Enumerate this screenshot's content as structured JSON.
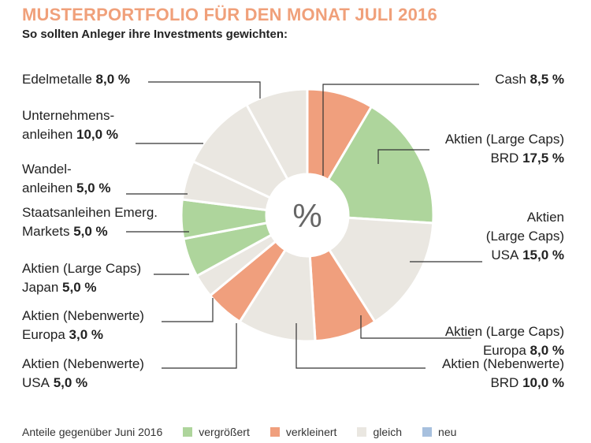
{
  "title": "MUSTERPORTFOLIO FÜR DEN MONAT JULI 2016",
  "subtitle": "So sollten Anleger ihre Investments gewichten:",
  "center_label": "%",
  "colors": {
    "vergroessert": "#AED59C",
    "verkleinert": "#F09F7D",
    "gleich": "#EAE7E1",
    "neu": "#A7C0DE"
  },
  "legend": {
    "intro": "Anteile gegenüber Juni 2016",
    "items": [
      {
        "label": "vergrößert",
        "status": "vergroessert"
      },
      {
        "label": "verkleinert",
        "status": "verkleinert"
      },
      {
        "label": "gleich",
        "status": "gleich"
      },
      {
        "label": "neu",
        "status": "neu"
      }
    ]
  },
  "chart_data": {
    "type": "pie",
    "title": "MUSTERPORTFOLIO FÜR DEN MONAT JULI 2016",
    "subtitle": "So sollten Anleger ihre Investments gewichten:",
    "unit": "%",
    "slices": [
      {
        "lines": [
          "Cash"
        ],
        "value": 8.5,
        "value_text": "8,5 %",
        "status": "verkleinert"
      },
      {
        "lines": [
          "Aktien (Large Caps)",
          "BRD"
        ],
        "value": 17.5,
        "value_text": "17,5 %",
        "status": "vergroessert"
      },
      {
        "lines": [
          "Aktien",
          "(Large Caps)",
          "USA"
        ],
        "value": 15.0,
        "value_text": "15,0 %",
        "status": "gleich"
      },
      {
        "lines": [
          "Aktien (Large Caps)",
          "Europa"
        ],
        "value": 8.0,
        "value_text": "8,0 %",
        "status": "verkleinert"
      },
      {
        "lines": [
          "Aktien (Nebenwerte)",
          "BRD"
        ],
        "value": 10.0,
        "value_text": "10,0 %",
        "status": "gleich"
      },
      {
        "lines": [
          "Aktien (Nebenwerte)",
          "USA"
        ],
        "value": 5.0,
        "value_text": "5,0 %",
        "status": "verkleinert"
      },
      {
        "lines": [
          "Aktien (Nebenwerte)",
          "Europa"
        ],
        "value": 3.0,
        "value_text": "3,0 %",
        "status": "gleich"
      },
      {
        "lines": [
          "Aktien (Large Caps)",
          "Japan"
        ],
        "value": 5.0,
        "value_text": "5,0 %",
        "status": "vergroessert"
      },
      {
        "lines": [
          "Staatsanleihen Emerg.",
          "Markets"
        ],
        "value": 5.0,
        "value_text": "5,0 %",
        "status": "vergroessert"
      },
      {
        "lines": [
          "Wandel-",
          "anleihen"
        ],
        "value": 5.0,
        "value_text": "5,0 %",
        "status": "gleich"
      },
      {
        "lines": [
          "Unternehmens-",
          "anleihen"
        ],
        "value": 10.0,
        "value_text": "10,0 %",
        "status": "gleich"
      },
      {
        "lines": [
          "Edelmetalle"
        ],
        "value": 8.0,
        "value_text": "8,0 %",
        "status": "gleich"
      }
    ]
  }
}
